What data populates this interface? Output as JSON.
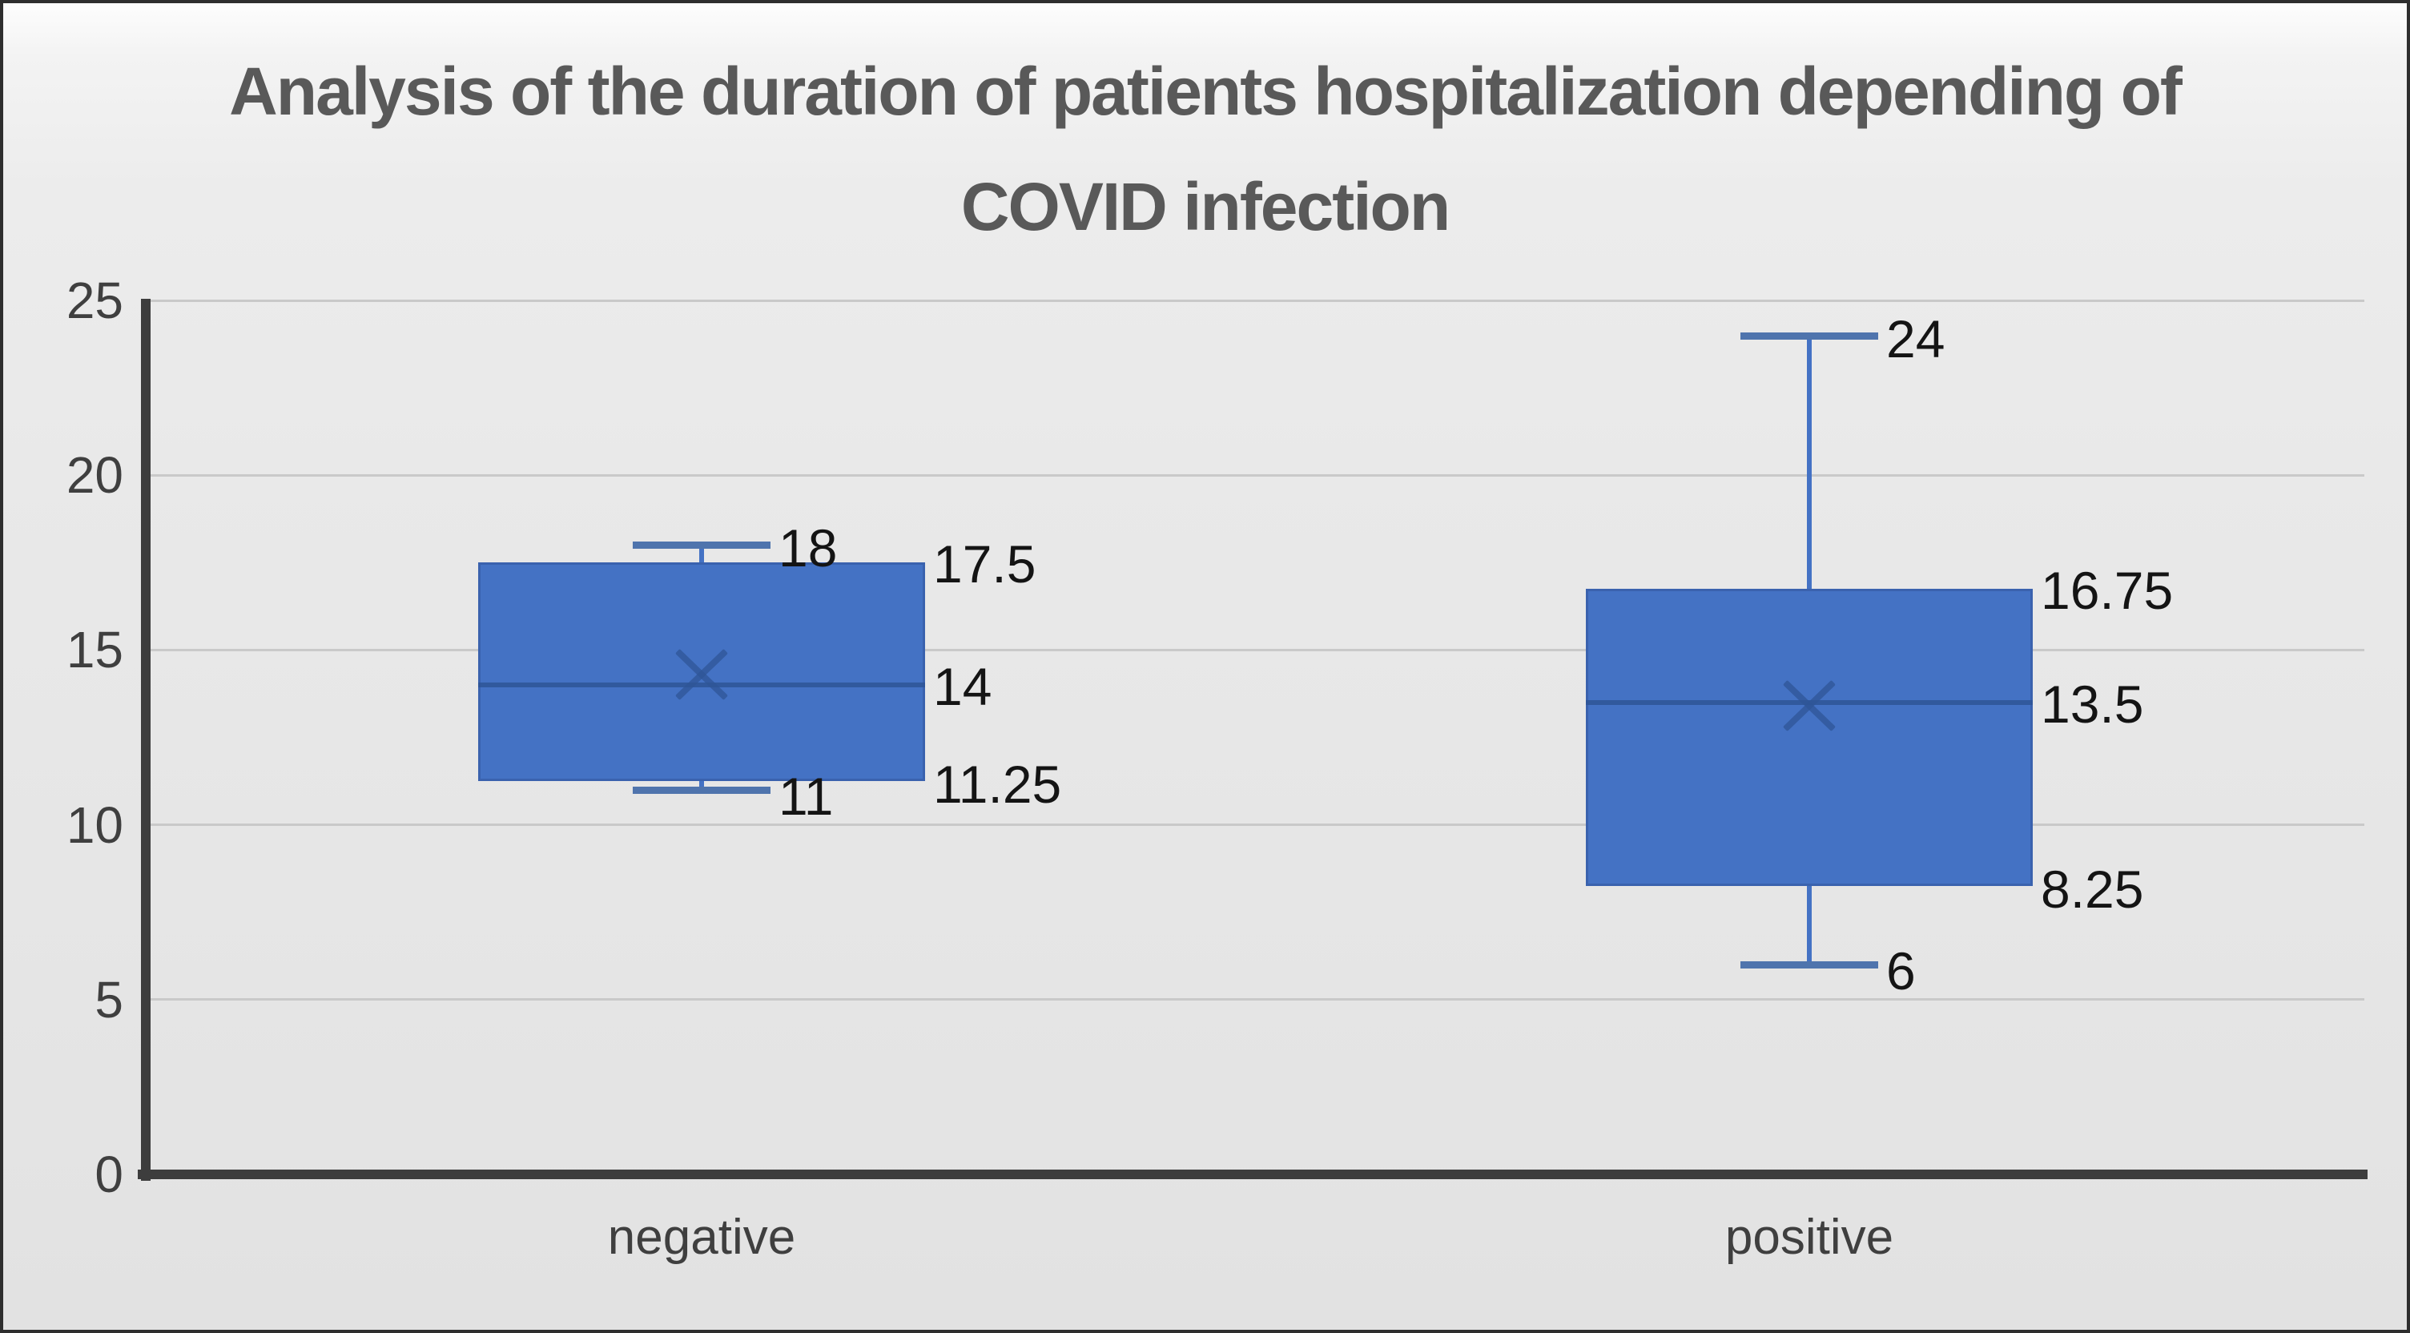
{
  "chart_data": {
    "type": "boxplot",
    "title": "Analysis of the duration of patients hospitalization depending of COVID infection",
    "title_lines": [
      "Analysis of the duration of patients hospitalization depending of",
      "COVID infection"
    ],
    "categories": [
      "negative",
      "positive"
    ],
    "y_axis": {
      "min": 0,
      "max": 25,
      "step": 5,
      "tick_labels": [
        "0",
        "5",
        "10",
        "15",
        "20",
        "25"
      ]
    },
    "grid": true,
    "legend": "none",
    "series": [
      {
        "category": "negative",
        "min": 11,
        "q1": 11.25,
        "median": 14,
        "q3": 17.5,
        "max": 18,
        "mean": 14.3,
        "labels": {
          "min": "11",
          "q1": "11.25",
          "median": "14",
          "q3": "17.5",
          "max": "18"
        }
      },
      {
        "category": "positive",
        "min": 6,
        "q1": 8.25,
        "median": 13.5,
        "q3": 16.75,
        "max": 24,
        "mean": 13.4,
        "labels": {
          "min": "6",
          "q1": "8.25",
          "median": "13.5",
          "q3": "16.75",
          "max": "24"
        }
      }
    ],
    "colors": {
      "box_fill": "#4472C4",
      "box_border": "#3A62AE",
      "median_line": "#2E5597",
      "mean_marker": "#2F5597",
      "whisker": "#4472C4",
      "whisker_cap": "#4F74AD",
      "axis": "#3D3D3D",
      "gridline": "#C9C9C9",
      "title_text": "#595959",
      "tick_text": "#3F3F3F",
      "data_label_text": "#141414"
    }
  }
}
